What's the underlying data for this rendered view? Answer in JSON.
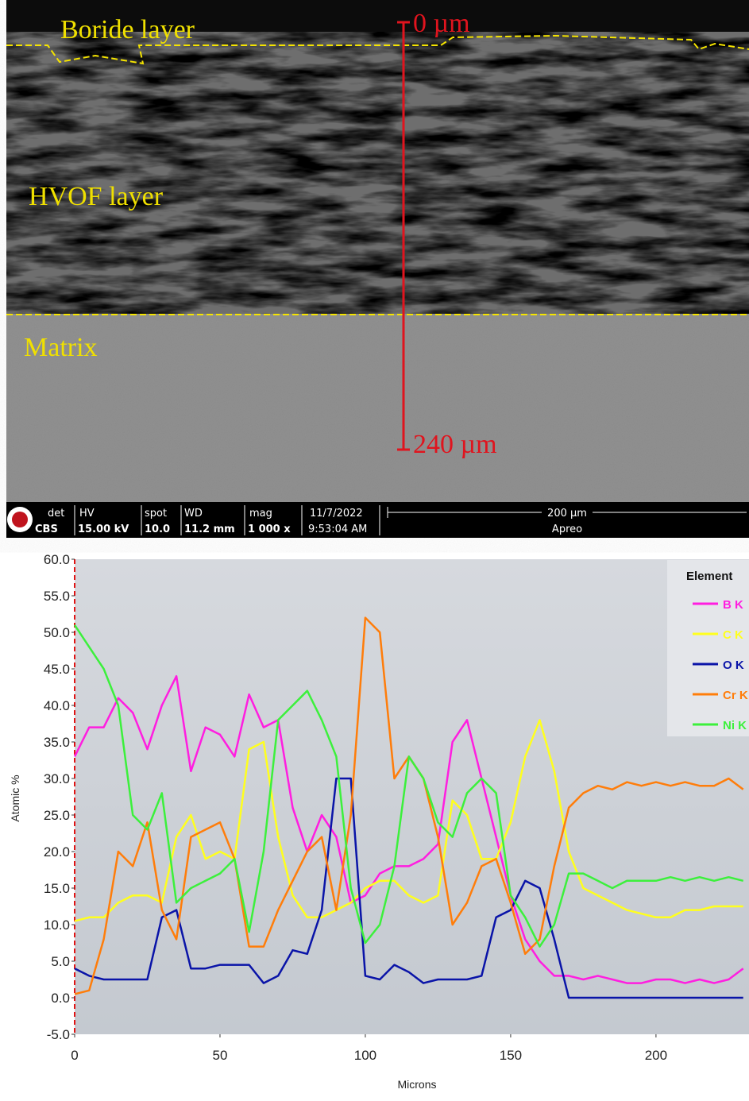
{
  "image": {
    "labels": {
      "boride": "Boride layer",
      "top_depth": "0 µm",
      "hvof": "HVOF layer",
      "matrix": "Matrix",
      "bottom_depth": "240 µm"
    },
    "info_bar": {
      "det_label": "det",
      "det": "CBS",
      "hv_label": "HV",
      "hv": "15.00 kV",
      "spot_label": "spot",
      "spot": "10.0",
      "wd_label": "WD",
      "wd": "11.2 mm",
      "mag_label": "mag",
      "mag": "1 000 x",
      "date": "11/7/2022",
      "time": "9:53:04 AM",
      "scale": "200 µm",
      "instrument": "Apreo"
    }
  },
  "chart_data": {
    "type": "line",
    "x_label": "Microns",
    "y_label": "Atomic %",
    "legend_title": "Element",
    "legend_position": "upper right",
    "x": [
      0,
      5,
      10,
      15,
      20,
      25,
      30,
      35,
      40,
      45,
      50,
      55,
      60,
      65,
      70,
      75,
      80,
      85,
      90,
      95,
      100,
      105,
      110,
      115,
      120,
      125,
      130,
      135,
      140,
      145,
      150,
      155,
      160,
      165,
      170,
      175,
      180,
      185,
      190,
      195,
      200,
      205,
      210,
      215,
      220,
      225,
      230
    ],
    "series": [
      {
        "name": "B K",
        "color": "#ff1ee0",
        "values": [
          33,
          37,
          37,
          41,
          39,
          34,
          40,
          44,
          31,
          37,
          36,
          33,
          41.5,
          37,
          38,
          26,
          20,
          25,
          22,
          13,
          14,
          17,
          18,
          18,
          19,
          21,
          35,
          38,
          30,
          22,
          14,
          8,
          5,
          3,
          3,
          2.5,
          3,
          2.5,
          2,
          2,
          2.5,
          2.5,
          2,
          2.5,
          2,
          2.5,
          4
        ]
      },
      {
        "name": "C K",
        "color": "#ffff1e",
        "values": [
          10.5,
          11,
          11,
          13,
          14,
          14,
          13,
          22,
          25,
          19,
          20,
          19,
          34,
          35,
          22,
          14,
          11,
          11,
          12,
          13,
          15,
          16,
          16,
          14,
          13,
          14,
          27,
          25,
          19,
          19,
          24,
          33,
          38,
          31,
          20,
          15,
          14,
          13,
          12,
          11.5,
          11,
          11,
          12,
          12,
          12.5,
          12.5,
          12.5
        ]
      },
      {
        "name": "O K",
        "color": "#0a14a8",
        "values": [
          4,
          3,
          2.5,
          2.5,
          2.5,
          2.5,
          11,
          12,
          4,
          4,
          4.5,
          4.5,
          4.5,
          2,
          3,
          6.5,
          6,
          12,
          30,
          30,
          3,
          2.5,
          4.5,
          3.5,
          2,
          2.5,
          2.5,
          2.5,
          3,
          11,
          12,
          16,
          15,
          8,
          0,
          0,
          0,
          0,
          0,
          0,
          0,
          0,
          0,
          0,
          0,
          0,
          0
        ]
      },
      {
        "name": "Cr K",
        "color": "#ff7d0a",
        "values": [
          0.5,
          1,
          8,
          20,
          18,
          24,
          12,
          8,
          22,
          23,
          24,
          19,
          7,
          7,
          12,
          16,
          20,
          22,
          12,
          25,
          52,
          50,
          30,
          33,
          30,
          22,
          10,
          13,
          18,
          19,
          13,
          6,
          8,
          18,
          26,
          28,
          29,
          28.5,
          29.5,
          29,
          29.5,
          29,
          29.5,
          29,
          29,
          30,
          28.5
        ]
      },
      {
        "name": "Ni K",
        "color": "#3cf03c",
        "values": [
          51,
          48,
          45,
          40,
          25,
          23,
          28,
          13,
          15,
          16,
          17,
          19,
          9,
          20,
          38,
          40,
          42,
          38,
          33,
          15,
          7.5,
          10,
          18,
          33,
          30,
          24,
          22,
          28,
          30,
          28,
          14,
          11,
          7,
          10,
          17,
          17,
          16,
          15,
          16,
          16,
          16,
          16.5,
          16,
          16.5,
          16,
          16.5,
          16
        ]
      }
    ],
    "xlim": [
      0,
      232
    ],
    "ylim": [
      -5,
      60
    ],
    "xticks": [
      0,
      50,
      100,
      150,
      200
    ],
    "yticks": [
      {
        "value": -5,
        "label": "-5.0"
      },
      {
        "value": 0,
        "label": "0.0"
      },
      {
        "value": 5,
        "label": "5.0"
      },
      {
        "value": 10,
        "label": "10.0"
      },
      {
        "value": 15,
        "label": "15.0"
      },
      {
        "value": 20,
        "label": "20.0"
      },
      {
        "value": 25,
        "label": "25.0"
      },
      {
        "value": 30,
        "label": "30.0"
      },
      {
        "value": 35,
        "label": "35.0"
      },
      {
        "value": 40,
        "label": "40.0"
      },
      {
        "value": 45,
        "label": "45.0"
      },
      {
        "value": 50,
        "label": "50.0"
      },
      {
        "value": 55,
        "label": "55.0"
      },
      {
        "value": 60,
        "label": "60.0"
      }
    ]
  }
}
